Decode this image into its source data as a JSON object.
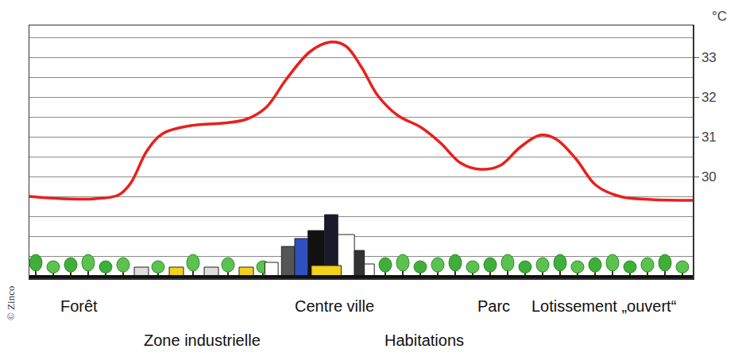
{
  "chart_data": {
    "type": "line",
    "y_label": "°C",
    "credit": "© Zinco",
    "x": [
      0,
      5.1,
      9.9,
      13.5,
      15.3,
      17.7,
      20.1,
      24.3,
      29.1,
      32.7,
      35.7,
      38.7,
      42.3,
      45.3,
      47.7,
      50.1,
      52.5,
      55.5,
      59.0,
      62.0,
      65.0,
      68.0,
      71.0,
      74.0,
      77.0,
      79.4,
      82.4,
      85.4,
      89.0,
      93.8,
      100
    ],
    "values": [
      29.5,
      29.44,
      29.44,
      29.54,
      29.84,
      30.64,
      31.08,
      31.28,
      31.34,
      31.44,
      31.74,
      32.44,
      33.14,
      33.38,
      33.28,
      32.74,
      32.04,
      31.54,
      31.24,
      30.84,
      30.34,
      30.18,
      30.28,
      30.74,
      31.04,
      30.94,
      30.44,
      29.78,
      29.5,
      29.42,
      29.4
    ],
    "color": "#e8201c",
    "line_style": "solid",
    "xlim": [
      0,
      100
    ],
    "ylim": [
      27.44,
      33.8
    ],
    "yticks": [
      30,
      31,
      32,
      33
    ],
    "grid": true,
    "tick_labels": "y",
    "annotations": [
      {
        "text": "Forêt",
        "x": 7.5
      },
      {
        "text": "Zone industrielle",
        "x": 26
      },
      {
        "text": "Centre ville",
        "x": 46
      },
      {
        "text": "Habitations",
        "x": 59.5
      },
      {
        "text": "Parc",
        "x": 70
      },
      {
        "text": "Lotissement „ouvert“",
        "x": 86.6
      }
    ]
  }
}
